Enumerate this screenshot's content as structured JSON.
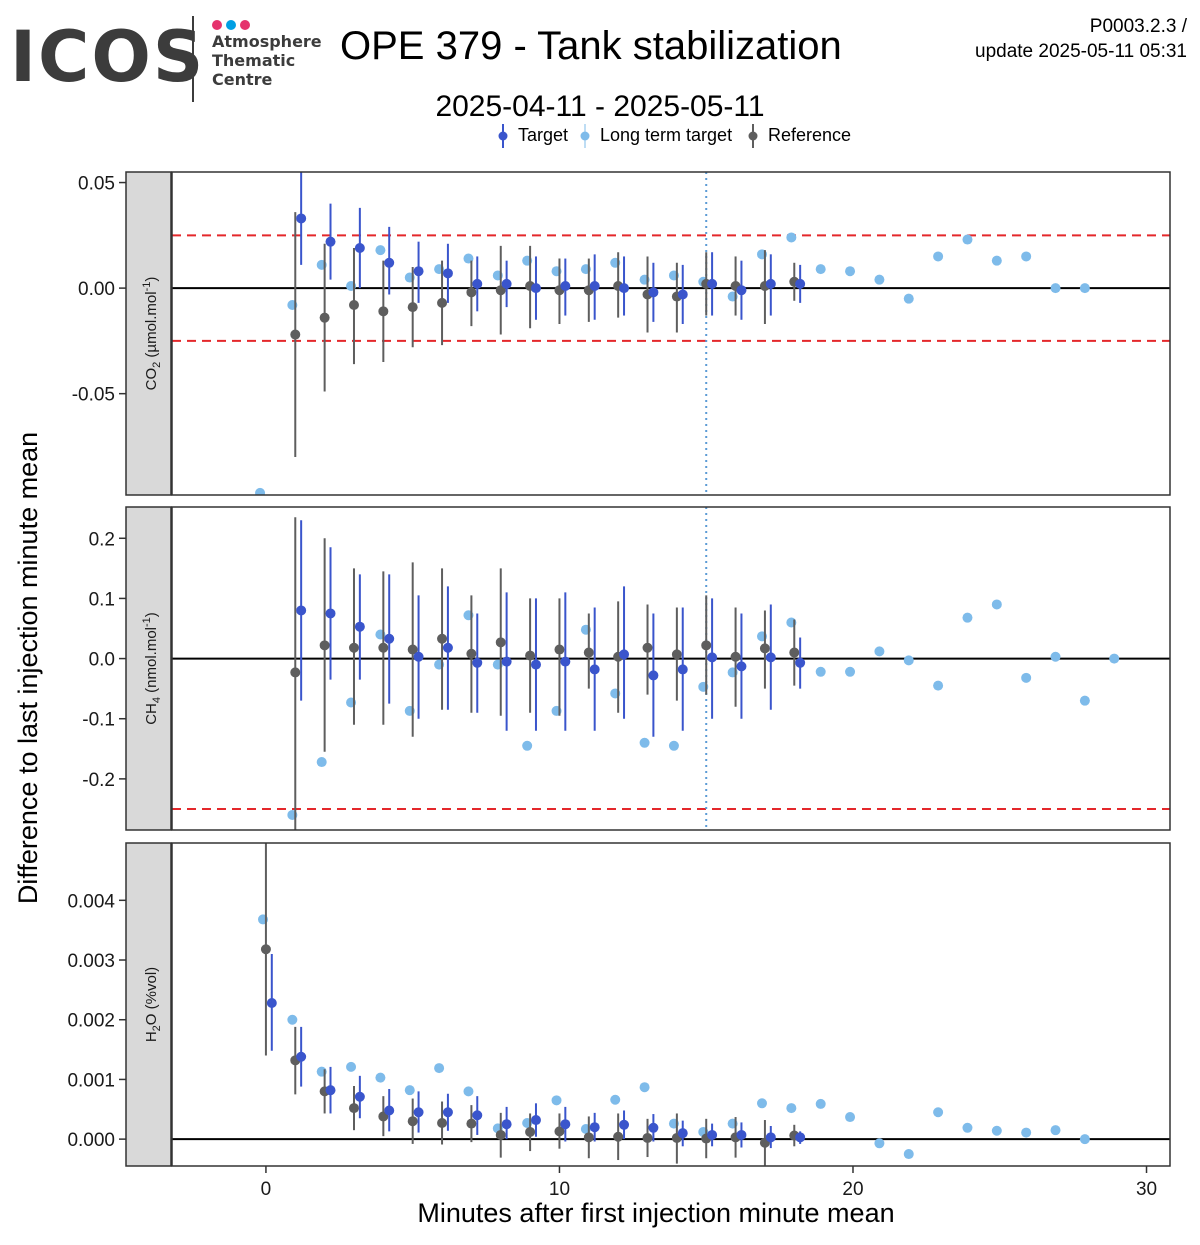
{
  "header": {
    "logo_text": "ICOS",
    "logo_subtitle": [
      "Atmosphere",
      "Thematic",
      "Centre"
    ],
    "logo_dot_colors": [
      "#e5336d",
      "#009fe3",
      "#e5336d"
    ],
    "title": "OPE 379 - Tank stabilization",
    "subtitle": "2025-04-11 - 2025-05-11",
    "version": "P0003.2.3 /",
    "update": "update  2025-05-11 05:31"
  },
  "legend": [
    {
      "label": "Target",
      "color": "#3a55cc"
    },
    {
      "label": "Long term target",
      "color": "#7ebbea"
    },
    {
      "label": "Reference",
      "color": "#5e5e5e"
    }
  ],
  "colors": {
    "target": "#3a55cc",
    "long_term": "#7ebbea",
    "reference": "#5e5e5e",
    "threshold": "#e4282b",
    "vline": "#5b9bd5",
    "strip": "#d9d9d9"
  },
  "chart_data": {
    "type": "scatter",
    "xlabel": "Minutes after first injection minute mean",
    "ylabel": "Difference to last injection minute mean",
    "xlim": [
      -3.2,
      30.8
    ],
    "x_ticks": [
      "0",
      "10",
      "20",
      "30"
    ],
    "x_tick_values": [
      0,
      10,
      20,
      30
    ],
    "vertical_line_x": 15,
    "panels": [
      {
        "strip": "CO2 (µmol.mol-1)",
        "strip_main": "CO",
        "strip_sub": "2",
        "strip_rest": " (µmol.mol",
        "strip_sup": "-1",
        "strip_end": ")",
        "ylim": [
          -0.098,
          0.055
        ],
        "y_ticks": [
          "0.05",
          "0.00",
          "-0.05"
        ],
        "y_tick_values": [
          0.05,
          0.0,
          -0.05
        ],
        "thresholds": [
          0.025,
          -0.025
        ],
        "target": [
          [
            1.2,
            0.033,
            0.011,
            0.056
          ],
          [
            2.2,
            0.022,
            0.004,
            0.04
          ],
          [
            3.2,
            0.019,
            0.0,
            0.038
          ],
          [
            4.2,
            0.012,
            -0.003,
            0.029
          ],
          [
            5.2,
            0.008,
            -0.007,
            0.022
          ],
          [
            6.2,
            0.007,
            -0.007,
            0.021
          ],
          [
            7.2,
            0.002,
            -0.011,
            0.015
          ],
          [
            8.2,
            0.002,
            -0.009,
            0.013
          ],
          [
            9.2,
            0.0,
            -0.015,
            0.015
          ],
          [
            10.2,
            0.001,
            -0.013,
            0.014
          ],
          [
            11.2,
            0.001,
            -0.015,
            0.016
          ],
          [
            12.2,
            0.0,
            -0.013,
            0.015
          ],
          [
            13.2,
            -0.002,
            -0.016,
            0.012
          ],
          [
            14.2,
            -0.003,
            -0.017,
            0.011
          ],
          [
            15.2,
            0.002,
            -0.013,
            0.017
          ],
          [
            16.2,
            -0.001,
            -0.015,
            0.013
          ],
          [
            17.2,
            0.002,
            -0.013,
            0.016
          ],
          [
            18.2,
            0.002,
            -0.007,
            0.011
          ]
        ],
        "reference": [
          [
            1.0,
            -0.022,
            -0.08,
            0.036
          ],
          [
            2.0,
            -0.014,
            -0.049,
            0.021
          ],
          [
            3.0,
            -0.008,
            -0.036,
            0.019
          ],
          [
            4.0,
            -0.011,
            -0.035,
            0.013
          ],
          [
            5.0,
            -0.009,
            -0.028,
            0.01
          ],
          [
            6.0,
            -0.007,
            -0.027,
            0.013
          ],
          [
            7.0,
            -0.002,
            -0.018,
            0.013
          ],
          [
            8.0,
            -0.001,
            -0.022,
            0.02
          ],
          [
            9.0,
            0.001,
            -0.019,
            0.02
          ],
          [
            10.0,
            -0.001,
            -0.017,
            0.014
          ],
          [
            11.0,
            -0.001,
            -0.016,
            0.014
          ],
          [
            12.0,
            0.001,
            -0.014,
            0.017
          ],
          [
            13.0,
            -0.003,
            -0.021,
            0.015
          ],
          [
            14.0,
            -0.004,
            -0.021,
            0.012
          ],
          [
            15.0,
            0.002,
            -0.013,
            0.017
          ],
          [
            16.0,
            0.001,
            -0.013,
            0.015
          ],
          [
            17.0,
            0.001,
            -0.017,
            0.018
          ],
          [
            18.0,
            0.003,
            -0.006,
            0.012
          ]
        ],
        "long_term": [
          [
            -0.2,
            -0.097
          ],
          [
            0.9,
            -0.008
          ],
          [
            1.9,
            0.011
          ],
          [
            2.9,
            0.001
          ],
          [
            3.9,
            0.018
          ],
          [
            4.9,
            0.005
          ],
          [
            5.9,
            0.009
          ],
          [
            6.9,
            0.014
          ],
          [
            7.9,
            0.006
          ],
          [
            8.9,
            0.013
          ],
          [
            9.9,
            0.008
          ],
          [
            10.9,
            0.009
          ],
          [
            11.9,
            0.012
          ],
          [
            12.9,
            0.004
          ],
          [
            13.9,
            0.006
          ],
          [
            14.9,
            0.003
          ],
          [
            15.9,
            -0.004
          ],
          [
            16.9,
            0.016
          ],
          [
            17.9,
            0.024
          ],
          [
            18.9,
            0.009
          ],
          [
            19.9,
            0.008
          ],
          [
            20.9,
            0.004
          ],
          [
            21.9,
            -0.005
          ],
          [
            22.9,
            0.015
          ],
          [
            23.9,
            0.023
          ],
          [
            24.9,
            0.013
          ],
          [
            25.9,
            0.015
          ],
          [
            26.9,
            0.0
          ],
          [
            27.9,
            0.0
          ]
        ]
      },
      {
        "strip": "CH4 (nmol.mol-1)",
        "strip_main": "CH",
        "strip_sub": "4",
        "strip_rest": " (nmol.mol",
        "strip_sup": "-1",
        "strip_end": ")",
        "ylim": [
          -0.285,
          0.252
        ],
        "y_ticks": [
          "0.2",
          "0.1",
          "0.0",
          "-0.1",
          "-0.2"
        ],
        "y_tick_values": [
          0.2,
          0.1,
          0.0,
          -0.1,
          -0.2
        ],
        "thresholds": [
          -0.25
        ],
        "target": [
          [
            1.2,
            0.08,
            -0.07,
            0.23
          ],
          [
            2.2,
            0.075,
            -0.035,
            0.185
          ],
          [
            3.2,
            0.053,
            -0.035,
            0.14
          ],
          [
            4.2,
            0.033,
            -0.075,
            0.14
          ],
          [
            5.2,
            0.003,
            -0.1,
            0.105
          ],
          [
            6.2,
            0.018,
            -0.085,
            0.12
          ],
          [
            7.2,
            -0.007,
            -0.09,
            0.075
          ],
          [
            8.2,
            -0.005,
            -0.12,
            0.11
          ],
          [
            9.2,
            -0.01,
            -0.12,
            0.1
          ],
          [
            10.2,
            -0.005,
            -0.12,
            0.11
          ],
          [
            11.2,
            -0.018,
            -0.12,
            0.085
          ],
          [
            12.2,
            0.007,
            -0.1,
            0.12
          ],
          [
            13.2,
            -0.028,
            -0.13,
            0.075
          ],
          [
            14.2,
            -0.018,
            -0.12,
            0.085
          ],
          [
            15.2,
            0.002,
            -0.1,
            0.1
          ],
          [
            16.2,
            -0.013,
            -0.1,
            0.075
          ],
          [
            17.2,
            0.002,
            -0.085,
            0.09
          ],
          [
            18.2,
            -0.007,
            -0.05,
            0.035
          ]
        ],
        "reference": [
          [
            1.0,
            -0.023,
            -0.285,
            0.235
          ],
          [
            2.0,
            0.022,
            -0.155,
            0.2
          ],
          [
            3.0,
            0.018,
            -0.11,
            0.15
          ],
          [
            4.0,
            0.018,
            -0.11,
            0.145
          ],
          [
            5.0,
            0.015,
            -0.13,
            0.16
          ],
          [
            6.0,
            0.033,
            -0.085,
            0.15
          ],
          [
            7.0,
            0.008,
            -0.09,
            0.105
          ],
          [
            8.0,
            0.027,
            -0.095,
            0.15
          ],
          [
            9.0,
            0.005,
            -0.09,
            0.1
          ],
          [
            10.0,
            0.015,
            -0.095,
            0.1
          ],
          [
            11.0,
            0.01,
            -0.05,
            0.075
          ],
          [
            12.0,
            0.003,
            -0.09,
            0.095
          ],
          [
            13.0,
            0.018,
            -0.06,
            0.09
          ],
          [
            14.0,
            0.007,
            -0.07,
            0.085
          ],
          [
            15.0,
            0.022,
            -0.06,
            0.105
          ],
          [
            16.0,
            0.003,
            -0.08,
            0.085
          ],
          [
            17.0,
            0.017,
            -0.05,
            0.08
          ],
          [
            18.0,
            0.01,
            -0.045,
            0.065
          ]
        ],
        "long_term": [
          [
            0.9,
            -0.26
          ],
          [
            1.9,
            -0.172
          ],
          [
            2.9,
            -0.073
          ],
          [
            3.9,
            0.04
          ],
          [
            4.9,
            -0.087
          ],
          [
            5.9,
            -0.01
          ],
          [
            6.9,
            0.072
          ],
          [
            7.9,
            -0.01
          ],
          [
            8.9,
            -0.145
          ],
          [
            9.9,
            -0.087
          ],
          [
            10.9,
            0.048
          ],
          [
            11.9,
            -0.058
          ],
          [
            12.9,
            -0.14
          ],
          [
            13.9,
            -0.145
          ],
          [
            14.9,
            -0.047
          ],
          [
            15.9,
            -0.023
          ],
          [
            16.9,
            0.037
          ],
          [
            17.9,
            0.06
          ],
          [
            18.9,
            -0.022
          ],
          [
            19.9,
            -0.022
          ],
          [
            20.9,
            0.012
          ],
          [
            21.9,
            -0.003
          ],
          [
            22.9,
            -0.045
          ],
          [
            23.9,
            0.068
          ],
          [
            24.9,
            0.09
          ],
          [
            25.9,
            -0.032
          ],
          [
            26.9,
            0.003
          ],
          [
            27.9,
            -0.07
          ],
          [
            28.9,
            0.0
          ]
        ]
      },
      {
        "strip": "H2O (%vol)",
        "strip_main": "H",
        "strip_sub": "2",
        "strip_rest": "O (%vol)",
        "strip_sup": "",
        "strip_end": "",
        "ylim": [
          -0.00045,
          0.00496
        ],
        "y_ticks": [
          "0.004",
          "0.003",
          "0.002",
          "0.001",
          "0.000"
        ],
        "y_tick_values": [
          0.004,
          0.003,
          0.002,
          0.001,
          0.0
        ],
        "thresholds": [],
        "target": [
          [
            0.2,
            0.00228,
            0.00148,
            0.0031
          ],
          [
            1.2,
            0.00138,
            0.00088,
            0.00188
          ],
          [
            2.2,
            0.00082,
            0.00043,
            0.00121
          ],
          [
            3.2,
            0.00071,
            0.00035,
            0.00106
          ],
          [
            4.2,
            0.00048,
            0.00013,
            0.00084
          ],
          [
            5.2,
            0.00045,
            0.00011,
            0.0008
          ],
          [
            6.2,
            0.00045,
            0.00014,
            0.00076
          ],
          [
            7.2,
            0.0004,
            7e-05,
            0.00072
          ],
          [
            8.2,
            0.00025,
            0.0,
            0.00054
          ],
          [
            9.2,
            0.00032,
            4e-05,
            0.0006
          ],
          [
            10.2,
            0.00025,
            -4e-05,
            0.00054
          ],
          [
            11.2,
            0.0002,
            -4e-05,
            0.00044
          ],
          [
            12.2,
            0.00024,
            0.0,
            0.00048
          ],
          [
            13.2,
            0.00019,
            -4e-05,
            0.00042
          ],
          [
            14.2,
            0.0001,
            -0.00012,
            0.00031
          ],
          [
            15.2,
            7e-05,
            -0.00012,
            0.00026
          ],
          [
            16.2,
            7e-05,
            -0.00014,
            0.00028
          ],
          [
            17.2,
            3e-05,
            -0.00015,
            0.00022
          ],
          [
            18.2,
            3e-05,
            -8e-05,
            0.00013
          ]
        ],
        "reference": [
          [
            0.0,
            0.00318,
            0.0014,
            0.00496
          ],
          [
            1.0,
            0.00132,
            0.00075,
            0.00188
          ],
          [
            2.0,
            0.0008,
            0.00043,
            0.00117
          ],
          [
            3.0,
            0.00052,
            0.00015,
            0.00089
          ],
          [
            4.0,
            0.00038,
            5e-05,
            0.00072
          ],
          [
            5.0,
            0.0003,
            -8e-05,
            0.00068
          ],
          [
            6.0,
            0.00027,
            -9e-05,
            0.00063
          ],
          [
            7.0,
            0.00026,
            -5e-05,
            0.00057
          ],
          [
            8.0,
            7e-05,
            -0.00031,
            0.00044
          ],
          [
            9.0,
            0.00012,
            -0.0002,
            0.00043
          ],
          [
            10.0,
            0.00013,
            -0.00016,
            0.00043
          ],
          [
            11.0,
            3e-05,
            -0.00032,
            0.00038
          ],
          [
            12.0,
            4e-05,
            -0.00035,
            0.00043
          ],
          [
            13.0,
            2e-05,
            -0.0003,
            0.00034
          ],
          [
            14.0,
            2e-05,
            -0.00041,
            0.00043
          ],
          [
            15.0,
            1e-05,
            -0.00032,
            0.00034
          ],
          [
            16.0,
            3e-05,
            -0.00031,
            0.00037
          ],
          [
            17.0,
            -6e-05,
            -0.00044,
            0.00032
          ],
          [
            18.0,
            6e-05,
            -0.00012,
            0.00024
          ]
        ],
        "long_term": [
          [
            -0.1,
            0.00368
          ],
          [
            0.9,
            0.002
          ],
          [
            1.9,
            0.00113
          ],
          [
            2.9,
            0.00121
          ],
          [
            3.9,
            0.00103
          ],
          [
            4.9,
            0.00082
          ],
          [
            5.9,
            0.00119
          ],
          [
            6.9,
            0.0008
          ],
          [
            7.9,
            0.00018
          ],
          [
            8.9,
            0.00027
          ],
          [
            9.9,
            0.00065
          ],
          [
            10.9,
            0.00017
          ],
          [
            11.9,
            0.00066
          ],
          [
            12.9,
            0.00087
          ],
          [
            13.9,
            0.00026
          ],
          [
            14.9,
            0.00012
          ],
          [
            15.9,
            0.00026
          ],
          [
            16.9,
            0.0006
          ],
          [
            17.9,
            0.00052
          ],
          [
            18.9,
            0.00059
          ],
          [
            19.9,
            0.00037
          ],
          [
            20.9,
            -7e-05
          ],
          [
            21.9,
            -0.00025
          ],
          [
            22.9,
            0.00045
          ],
          [
            23.9,
            0.00019
          ],
          [
            24.9,
            0.00014
          ],
          [
            25.9,
            0.00011
          ],
          [
            26.9,
            0.00015
          ],
          [
            27.9,
            0.0
          ]
        ]
      }
    ]
  }
}
